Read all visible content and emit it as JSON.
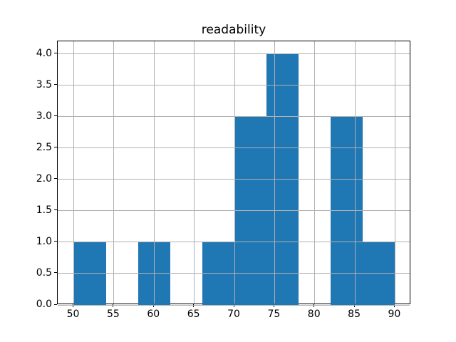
{
  "chart_data": {
    "type": "bar",
    "subtype": "histogram",
    "title": "readability",
    "xlabel": "",
    "ylabel": "",
    "bin_edges": [
      50,
      54,
      58,
      62,
      66,
      70,
      74,
      78,
      82,
      86,
      90
    ],
    "counts": [
      1,
      0,
      1,
      0,
      1,
      3,
      4,
      0,
      3,
      1
    ],
    "xlim": [
      48,
      92
    ],
    "ylim": [
      0,
      4.2
    ],
    "xticks": [
      50,
      55,
      60,
      65,
      70,
      75,
      80,
      85,
      90
    ],
    "xtick_labels": [
      "50",
      "55",
      "60",
      "65",
      "70",
      "75",
      "80",
      "85",
      "90"
    ],
    "yticks": [
      0,
      0.5,
      1,
      1.5,
      2,
      2.5,
      3,
      3.5,
      4
    ],
    "ytick_labels": [
      "0.0",
      "0.5",
      "1.0",
      "1.5",
      "2.0",
      "2.5",
      "3.0",
      "3.5",
      "4.0"
    ],
    "grid": true,
    "grid_above_bars": true,
    "legend_position": "none",
    "bar_color": "#1f77b4",
    "grid_color": "#b0b0b0",
    "spine_color": "#000000",
    "background_color": "#ffffff"
  }
}
